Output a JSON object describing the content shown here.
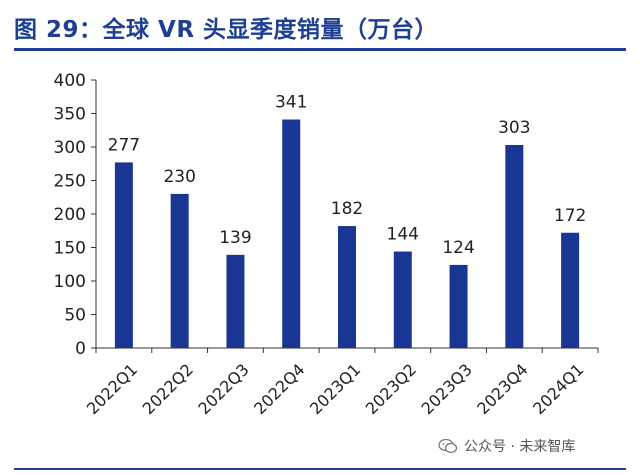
{
  "title": "图 29：全球 VR 头显季度销量（万台）",
  "watermark": {
    "text": "公众号 · 未来智库",
    "icon": "wechat-icon"
  },
  "colors": {
    "bar": "#1a3694",
    "title": "#1f3f93",
    "axis": "#333333",
    "text": "#222222"
  },
  "chart_data": {
    "type": "bar",
    "title": "图 29：全球 VR 头显季度销量（万台）",
    "xlabel": "",
    "ylabel": "",
    "categories": [
      "2022Q1",
      "2022Q2",
      "2022Q3",
      "2022Q4",
      "2023Q1",
      "2023Q2",
      "2023Q3",
      "2023Q4",
      "2024Q1"
    ],
    "values": [
      277,
      230,
      139,
      341,
      182,
      144,
      124,
      303,
      172
    ],
    "ylim": [
      0,
      400
    ],
    "yticks": [
      0,
      50,
      100,
      150,
      200,
      250,
      300,
      350,
      400
    ],
    "grid": false,
    "legend": "none",
    "data_labels": true
  }
}
